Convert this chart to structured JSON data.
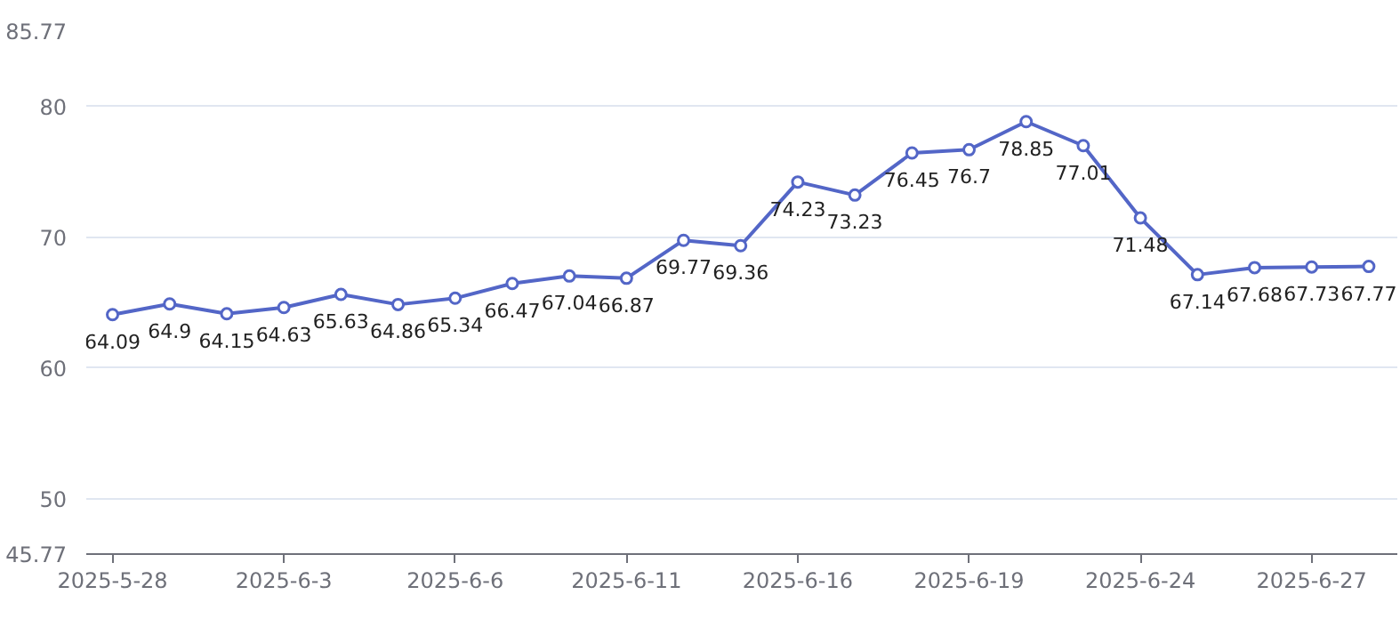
{
  "chart_data": {
    "type": "line",
    "categories": [
      "2025-5-28",
      null,
      null,
      "2025-6-3",
      null,
      null,
      "2025-6-6",
      null,
      null,
      "2025-6-11",
      null,
      null,
      "2025-6-16",
      null,
      null,
      "2025-6-19",
      null,
      null,
      "2025-6-24",
      null,
      null,
      "2025-6-27",
      null
    ],
    "series": [
      {
        "color": "#5366c7",
        "values": [
          64.09,
          64.9,
          64.15,
          64.63,
          65.63,
          64.86,
          65.34,
          66.47,
          67.04,
          66.87,
          69.77,
          69.36,
          74.23,
          73.23,
          76.45,
          76.7,
          78.85,
          77.01,
          71.48,
          67.14,
          67.68,
          67.73,
          67.77
        ]
      }
    ],
    "ylim": [
      45.77,
      85.77
    ],
    "yticks": [
      45.77,
      50,
      60,
      70,
      80,
      85.77
    ],
    "grid": "y",
    "marker": "circle",
    "data_labels": true
  }
}
